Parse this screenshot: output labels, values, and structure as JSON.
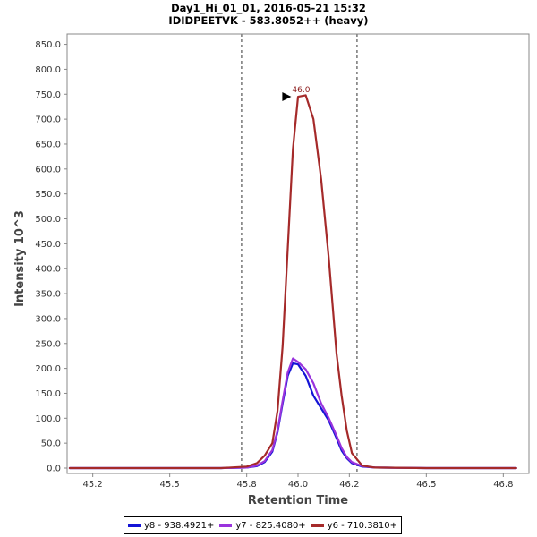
{
  "chart_data": {
    "type": "line",
    "title": "Day1_Hi_01_01, 2016-05-21 15:32",
    "subtitle": "IDIDPEETVK - 583.8052++ (heavy)",
    "xlabel": "Retention Time",
    "ylabel": "Intensity 10^3",
    "xlim": [
      45.1,
      46.9
    ],
    "ylim": [
      0,
      860
    ],
    "x_ticks": [
      {
        "value": 45.2,
        "label": "45.2"
      },
      {
        "value": 45.5,
        "label": "45.5"
      },
      {
        "value": 45.8,
        "label": "45.8"
      },
      {
        "value": 46.0,
        "label": "46.0"
      },
      {
        "value": 46.2,
        "label": "46.2"
      },
      {
        "value": 46.5,
        "label": "46.5"
      },
      {
        "value": 46.8,
        "label": "46.8"
      }
    ],
    "y_ticks": [
      {
        "value": 0,
        "label": "0.0"
      },
      {
        "value": 50,
        "label": "50.0"
      },
      {
        "value": 100,
        "label": "100.0"
      },
      {
        "value": 150,
        "label": "150.0"
      },
      {
        "value": 200,
        "label": "200.0"
      },
      {
        "value": 250,
        "label": "250.0"
      },
      {
        "value": 300,
        "label": "300.0"
      },
      {
        "value": 350,
        "label": "350.0"
      },
      {
        "value": 400,
        "label": "400.0"
      },
      {
        "value": 450,
        "label": "450.0"
      },
      {
        "value": 500,
        "label": "500.0"
      },
      {
        "value": 550,
        "label": "550.0"
      },
      {
        "value": 600,
        "label": "600.0"
      },
      {
        "value": 650,
        "label": "650.0"
      },
      {
        "value": 700,
        "label": "700.0"
      },
      {
        "value": 750,
        "label": "750.0"
      },
      {
        "value": 800,
        "label": "800.0"
      },
      {
        "value": 850,
        "label": "850.0"
      }
    ],
    "boundaries": [
      45.78,
      46.23
    ],
    "peak_annotation": {
      "x": 45.97,
      "y": 745,
      "label": "46.0"
    },
    "x": [
      45.11,
      45.5,
      45.7,
      45.8,
      45.84,
      45.87,
      45.9,
      45.92,
      45.94,
      45.96,
      45.98,
      46.0,
      46.03,
      46.06,
      46.09,
      46.12,
      46.15,
      46.17,
      46.19,
      46.21,
      46.25,
      46.3,
      46.5,
      46.85
    ],
    "series": [
      {
        "name": "y8 - 938.4921+",
        "color": "#1414d6",
        "values": [
          0,
          0,
          0,
          1,
          4,
          12,
          33,
          72,
          130,
          185,
          210,
          208,
          185,
          145,
          120,
          95,
          60,
          35,
          20,
          10,
          3,
          1,
          0,
          0
        ]
      },
      {
        "name": "y7 - 825.4080+",
        "color": "#9933dd",
        "values": [
          0,
          0,
          0,
          1,
          5,
          14,
          36,
          75,
          135,
          192,
          220,
          213,
          198,
          170,
          130,
          100,
          65,
          40,
          22,
          12,
          4,
          1,
          0,
          0
        ]
      },
      {
        "name": "y6 - 710.3810+",
        "color": "#a52a2a",
        "values": [
          0,
          0,
          0,
          3,
          10,
          25,
          50,
          115,
          245,
          440,
          640,
          745,
          748,
          700,
          580,
          420,
          230,
          145,
          75,
          30,
          5,
          1,
          0,
          0
        ]
      }
    ]
  }
}
